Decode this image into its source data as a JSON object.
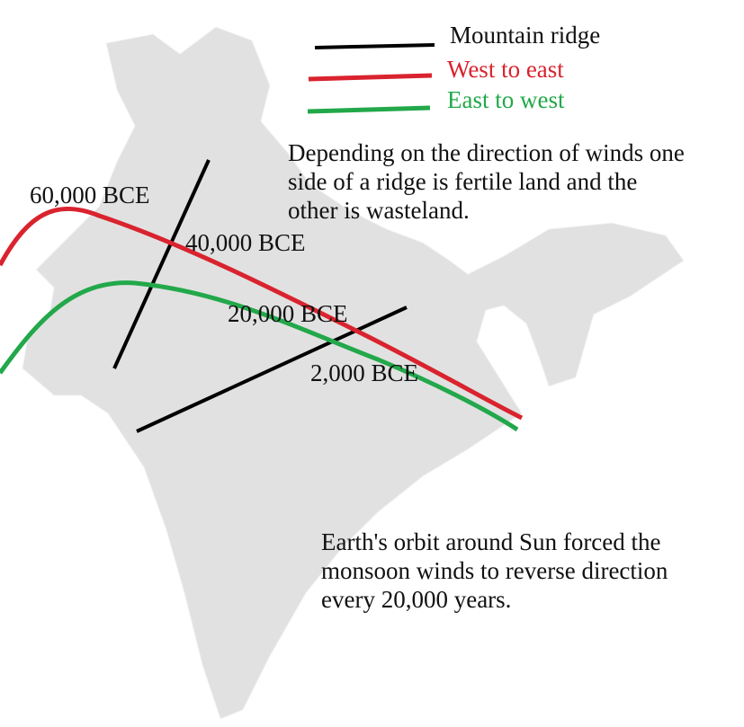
{
  "legend": {
    "ridge": {
      "label": "Mountain ridge",
      "color": "#000000"
    },
    "west_east": {
      "label": "West to east",
      "color": "#d9232e"
    },
    "east_west": {
      "label": "East to west",
      "color": "#22a84a"
    }
  },
  "map_fill": "#e1e1e1",
  "time_labels": [
    "60,000 BCE",
    "40,000 BCE",
    "20,000 BCE",
    "2,000 BCE"
  ],
  "notes": [
    "Depending on the direction of winds one side of a ridge is fertile land and the other is wasteland.",
    "Earth's orbit around Sun forced the monsoon winds to reverse direction every 20,000 years."
  ]
}
